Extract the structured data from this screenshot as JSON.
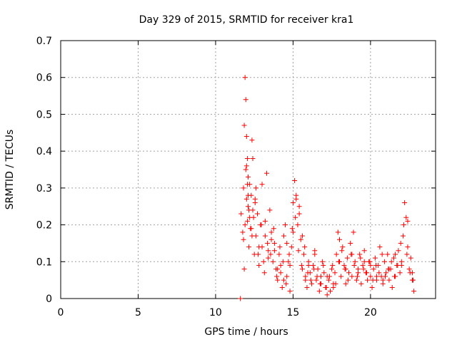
{
  "chart_data": {
    "type": "scatter",
    "title": "Day 329 of 2015, SRMTID for receiver kra1",
    "xlabel": "GPS time / hours",
    "ylabel": "SRMTID / TECUs",
    "xlim": [
      0,
      24.2
    ],
    "ylim": [
      0,
      0.7
    ],
    "xticks": [
      0,
      5,
      10,
      15,
      20
    ],
    "xtick_labels": [
      "0",
      "5",
      "10",
      "15",
      "20"
    ],
    "yticks": [
      0,
      0.1,
      0.2,
      0.3,
      0.4,
      0.5,
      0.6,
      0.7
    ],
    "ytick_labels": [
      "0",
      "0.1",
      "0.2",
      "0.3",
      "0.4",
      "0.5",
      "0.6",
      "0.7"
    ],
    "grid": true,
    "marker": "plus",
    "color": "#ff0000",
    "series": [
      {
        "name": "kra1",
        "x": [
          11.6,
          11.65,
          11.75,
          11.8,
          11.85,
          11.9,
          11.95,
          12.0,
          12.05,
          12.1,
          11.8,
          11.85,
          11.9,
          11.95,
          12.0,
          12.05,
          12.1,
          12.15,
          12.2,
          12.25,
          12.3,
          12.35,
          12.4,
          12.45,
          12.5,
          12.55,
          12.6,
          12.7,
          12.8,
          12.9,
          13.0,
          13.1,
          13.2,
          13.3,
          13.4,
          13.5,
          13.6,
          13.7,
          13.8,
          13.9,
          14.0,
          14.1,
          14.2,
          14.3,
          14.4,
          14.5,
          14.6,
          14.7,
          14.8,
          14.9,
          15.0,
          15.1,
          15.2,
          15.3,
          15.4,
          15.5,
          15.6,
          15.7,
          15.8,
          15.9,
          16.0,
          16.1,
          16.2,
          16.3,
          16.4,
          16.5,
          16.6,
          16.7,
          16.8,
          16.9,
          17.0,
          17.1,
          17.2,
          17.3,
          17.4,
          17.5,
          17.6,
          17.7,
          17.8,
          17.9,
          18.0,
          18.1,
          18.2,
          18.3,
          18.4,
          18.5,
          18.6,
          18.7,
          18.8,
          18.9,
          19.0,
          19.1,
          19.2,
          19.3,
          19.4,
          19.5,
          19.6,
          19.7,
          19.8,
          19.9,
          20.0,
          20.1,
          20.2,
          20.3,
          20.4,
          20.5,
          20.6,
          20.7,
          20.8,
          20.9,
          21.0,
          21.1,
          21.2,
          21.3,
          21.4,
          21.5,
          21.6,
          21.7,
          21.8,
          21.9,
          22.0,
          22.1,
          22.2,
          22.3,
          22.4,
          22.5,
          22.6,
          22.7,
          22.8,
          12.0,
          12.1,
          12.2,
          12.3,
          12.4,
          12.6,
          12.8,
          13.0,
          13.2,
          13.4,
          13.6,
          13.8,
          14.0,
          14.2,
          14.4,
          14.6,
          14.8,
          15.0,
          15.2,
          15.4,
          15.6,
          15.8,
          16.0,
          16.4,
          16.8,
          17.2,
          17.6,
          18.0,
          18.4,
          18.8,
          19.2,
          19.6,
          20.0,
          20.4,
          20.8,
          21.2,
          21.6,
          22.0,
          22.4,
          22.7,
          12.05,
          12.15,
          12.35,
          12.55,
          12.75,
          12.95,
          13.15,
          13.35,
          13.55,
          13.75,
          13.95,
          14.15,
          14.35,
          14.55,
          14.75,
          14.95,
          15.15,
          15.35,
          15.55,
          15.75,
          15.95,
          16.15,
          16.35,
          16.55,
          16.75,
          16.95,
          17.15,
          17.35,
          17.55,
          17.75,
          17.95,
          18.15,
          18.35,
          18.55,
          18.75,
          18.95,
          19.15,
          19.35,
          19.55,
          19.75,
          19.95,
          20.15,
          20.35,
          20.55,
          20.75,
          20.95,
          21.15,
          21.35,
          21.55,
          21.75,
          21.95,
          22.15,
          22.35,
          22.55,
          22.75
        ],
        "y": [
          0.0,
          0.23,
          0.18,
          0.3,
          0.47,
          0.6,
          0.54,
          0.44,
          0.38,
          0.33,
          0.16,
          0.08,
          0.2,
          0.35,
          0.27,
          0.21,
          0.25,
          0.14,
          0.31,
          0.19,
          0.28,
          0.43,
          0.38,
          0.22,
          0.12,
          0.27,
          0.17,
          0.23,
          0.14,
          0.2,
          0.31,
          0.1,
          0.17,
          0.34,
          0.13,
          0.24,
          0.18,
          0.1,
          0.15,
          0.08,
          0.05,
          0.12,
          0.09,
          0.03,
          0.17,
          0.2,
          0.06,
          0.1,
          0.02,
          0.14,
          0.26,
          0.32,
          0.28,
          0.2,
          0.25,
          0.16,
          0.08,
          0.12,
          0.06,
          0.03,
          0.1,
          0.07,
          0.04,
          0.09,
          0.12,
          0.05,
          0.08,
          0.02,
          0.06,
          0.1,
          0.07,
          0.03,
          0.01,
          0.05,
          0.02,
          0.08,
          0.03,
          0.07,
          0.12,
          0.18,
          0.1,
          0.06,
          0.14,
          0.09,
          0.04,
          0.11,
          0.07,
          0.15,
          0.06,
          0.18,
          0.1,
          0.05,
          0.08,
          0.12,
          0.04,
          0.09,
          0.13,
          0.07,
          0.05,
          0.1,
          0.06,
          0.03,
          0.08,
          0.11,
          0.05,
          0.09,
          0.14,
          0.06,
          0.04,
          0.1,
          0.07,
          0.12,
          0.05,
          0.08,
          0.03,
          0.11,
          0.06,
          0.09,
          0.13,
          0.07,
          0.1,
          0.17,
          0.26,
          0.22,
          0.14,
          0.08,
          0.11,
          0.05,
          0.02,
          0.36,
          0.28,
          0.22,
          0.19,
          0.24,
          0.3,
          0.09,
          0.14,
          0.21,
          0.11,
          0.16,
          0.13,
          0.08,
          0.07,
          0.05,
          0.15,
          0.09,
          0.18,
          0.27,
          0.23,
          0.17,
          0.05,
          0.09,
          0.13,
          0.04,
          0.06,
          0.04,
          0.16,
          0.08,
          0.12,
          0.07,
          0.1,
          0.09,
          0.06,
          0.05,
          0.08,
          0.12,
          0.09,
          0.21,
          0.07,
          0.31,
          0.24,
          0.17,
          0.26,
          0.12,
          0.2,
          0.07,
          0.15,
          0.12,
          0.19,
          0.06,
          0.14,
          0.1,
          0.04,
          0.12,
          0.19,
          0.22,
          0.13,
          0.09,
          0.14,
          0.07,
          0.05,
          0.08,
          0.06,
          0.04,
          0.09,
          0.03,
          0.06,
          0.09,
          0.04,
          0.1,
          0.13,
          0.08,
          0.05,
          0.12,
          0.09,
          0.06,
          0.11,
          0.08,
          0.07,
          0.1,
          0.05,
          0.09,
          0.07,
          0.12,
          0.06,
          0.08,
          0.1,
          0.06,
          0.09,
          0.15,
          0.2,
          0.12,
          0.07,
          0.05
        ]
      }
    ]
  }
}
